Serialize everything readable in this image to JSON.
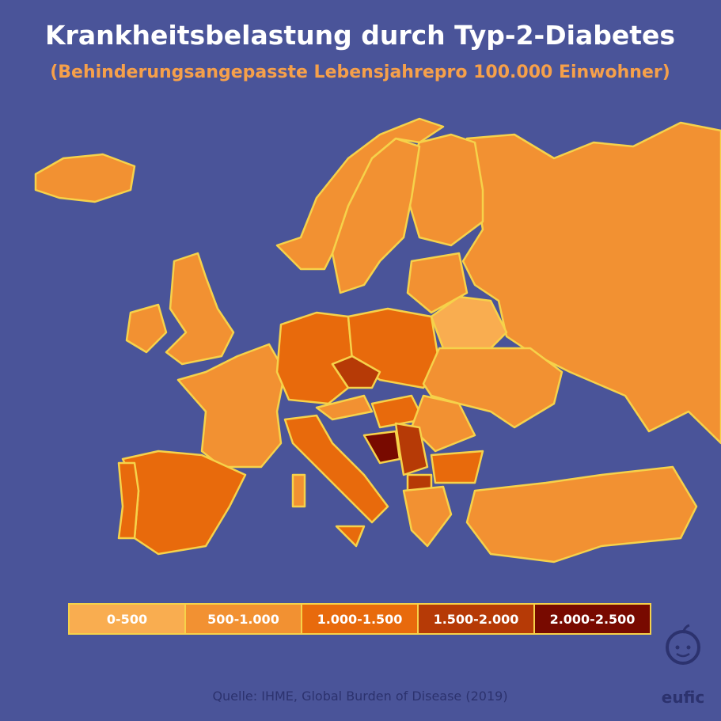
{
  "header": {
    "title": "Krankheitsbelastung durch Typ-2-Diabetes",
    "subtitle": "(Behinderungsangepasste Lebensjahrepro 100.000 Einwohner)"
  },
  "legend": {
    "items": [
      {
        "label": "0-500",
        "color": "#f9ad50"
      },
      {
        "label": "500-1.000",
        "color": "#f29132"
      },
      {
        "label": "1.000-1.500",
        "color": "#e86a0c"
      },
      {
        "label": "1.500-2.000",
        "color": "#b63a06"
      },
      {
        "label": "2.000-2.500",
        "color": "#780a00"
      }
    ]
  },
  "footer": {
    "source": "Quelle: IHME, Global Burden of Disease (2019)",
    "logo": "eufic"
  }
}
